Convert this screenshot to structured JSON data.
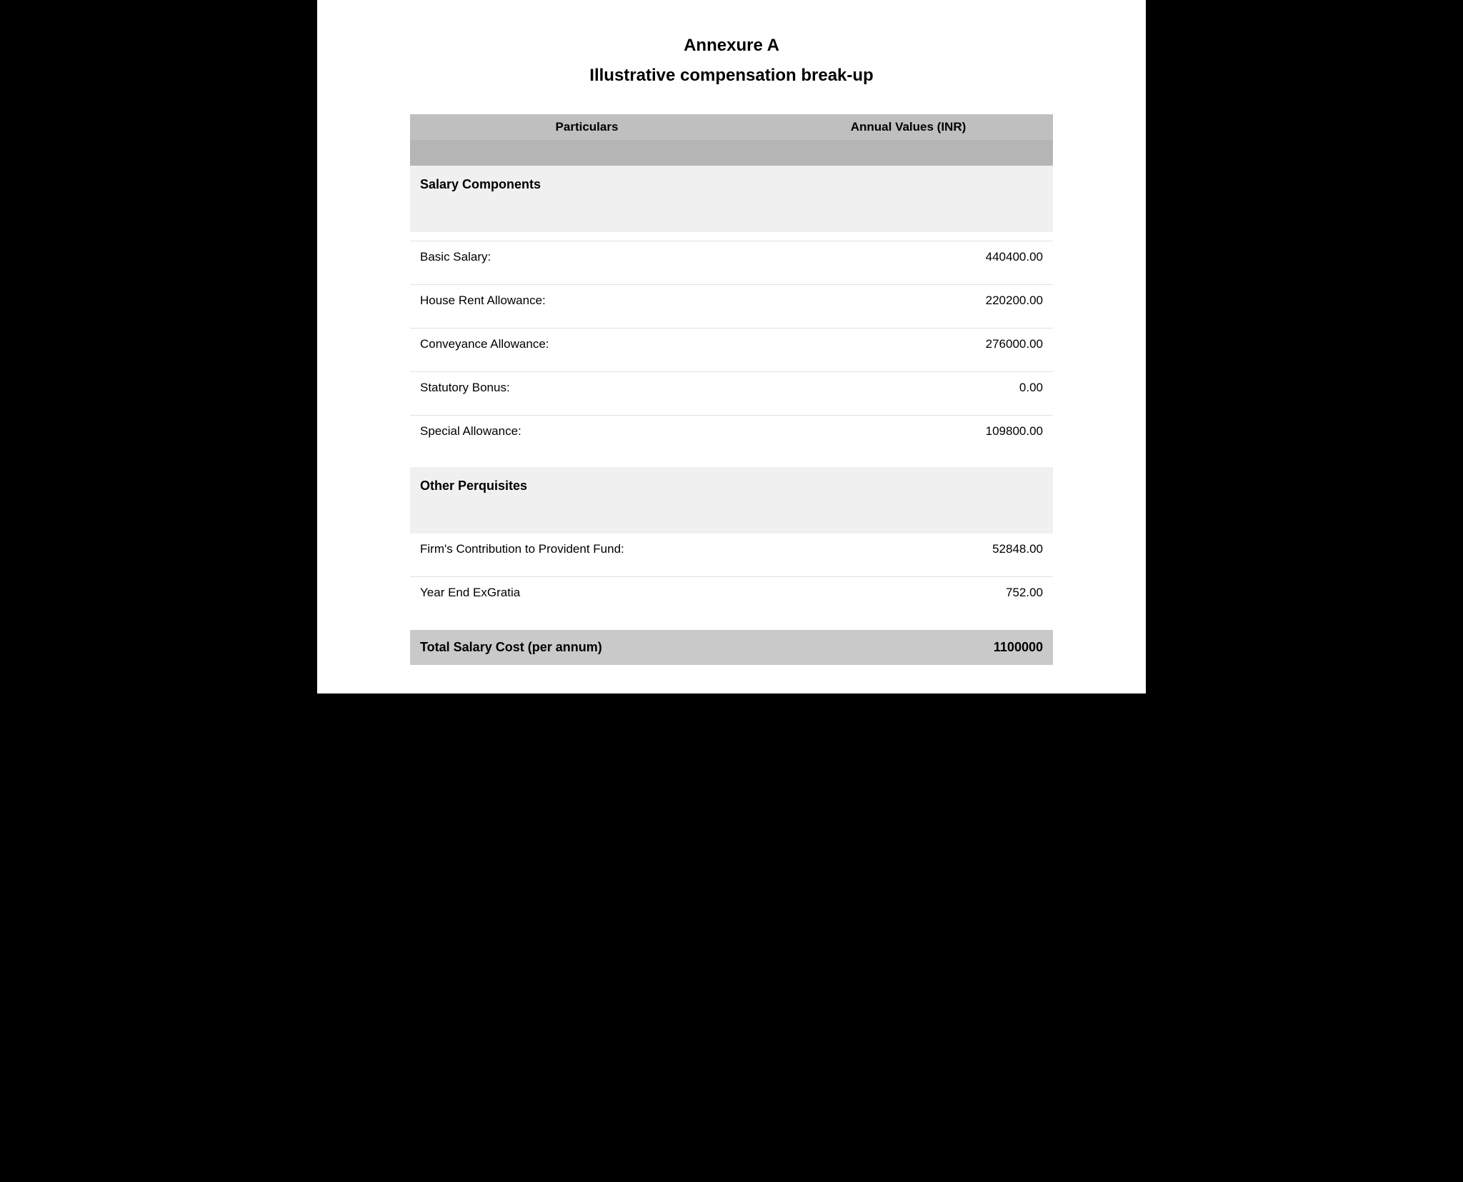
{
  "document": {
    "title": "Annexure A",
    "subtitle": "Illustrative compensation break-up"
  },
  "table": {
    "columns": [
      "Particulars",
      "Annual Values (INR)"
    ],
    "header_bg": "#bfbfbf",
    "header_spacer_bg": "#b5b5b5",
    "section_bg": "#f0f0f0",
    "row_border_color": "#e2e2e2",
    "total_bg": "#c9c9c9",
    "text_color": "#000000",
    "font_family": "Arial, Helvetica, sans-serif",
    "title_font_family": "Verdana, Geneva, sans-serif",
    "title_fontsize_pt": 18,
    "header_fontsize_pt": 13,
    "row_fontsize_pt": 13,
    "section_fontsize_pt": 13.5,
    "sections": [
      {
        "heading": "Salary Components",
        "rows": [
          {
            "label": "Basic Salary:",
            "value": "440400.00"
          },
          {
            "label": "House Rent Allowance:",
            "value": "220200.00"
          },
          {
            "label": "Conveyance Allowance:",
            "value": "276000.00"
          },
          {
            "label": "Statutory Bonus:",
            "value": "0.00"
          },
          {
            "label": "Special Allowance:",
            "value": "109800.00"
          }
        ]
      },
      {
        "heading": "Other Perquisites",
        "rows": [
          {
            "label": "Firm's Contribution to Provident Fund:",
            "value": "52848.00"
          },
          {
            "label": "Year End ExGratia",
            "value": "752.00"
          }
        ]
      }
    ],
    "total": {
      "label": "Total Salary Cost (per annum)",
      "value": "1100000"
    }
  },
  "page": {
    "background_color": "#000000",
    "paper_color": "#ffffff"
  }
}
